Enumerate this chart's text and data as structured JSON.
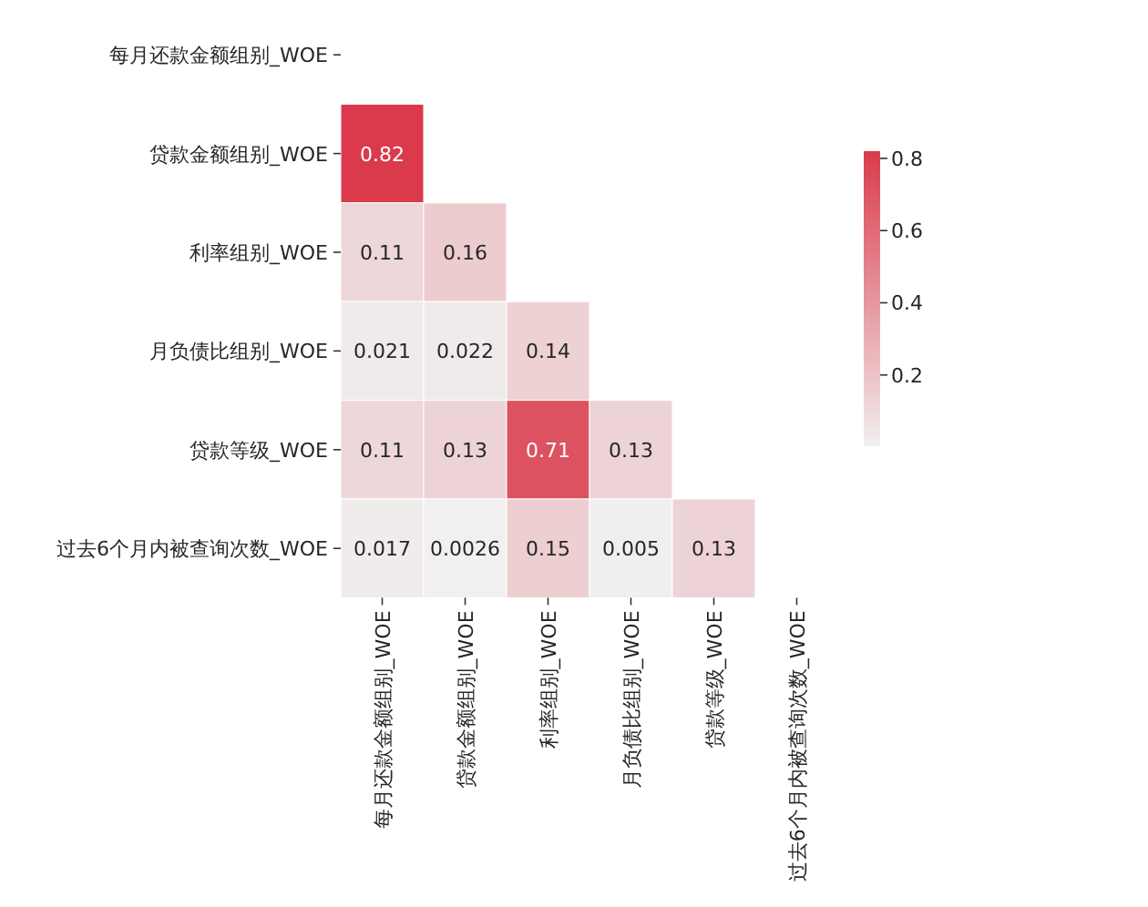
{
  "chart_data": {
    "type": "heatmap",
    "categories": [
      "每月还款金额组别_WOE",
      "贷款金额组别_WOE",
      "利率组别_WOE",
      "月负债比组别_WOE",
      "贷款等级_WOE",
      "过去6个月内被查询次数_WOE"
    ],
    "y_categories": [
      "每月还款金额组别_WOE",
      "贷款金额组别_WOE",
      "利率组别_WOE",
      "月负债比组别_WOE",
      "贷款等级_WOE",
      "过去6个月内被查询次数_WOE"
    ],
    "cells": [
      [
        null,
        null,
        null,
        null,
        null,
        null
      ],
      [
        0.82,
        null,
        null,
        null,
        null,
        null
      ],
      [
        0.11,
        0.16,
        null,
        null,
        null,
        null
      ],
      [
        0.021,
        0.022,
        0.14,
        null,
        null,
        null
      ],
      [
        0.11,
        0.13,
        0.71,
        0.13,
        null,
        null
      ],
      [
        0.017,
        0.0026,
        0.15,
        0.005,
        0.13,
        null
      ]
    ],
    "clim": [
      0.0026,
      0.82
    ],
    "cticks": [
      0.2,
      0.4,
      0.6,
      0.8
    ],
    "data_labels": true
  }
}
